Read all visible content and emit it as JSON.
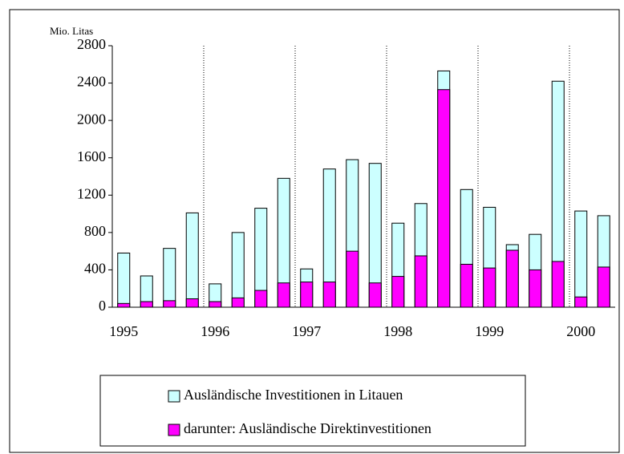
{
  "chart_data": {
    "type": "bar",
    "y_unit": "Mio. Litas",
    "categories": [
      "1995",
      null,
      null,
      null,
      "1996",
      null,
      null,
      null,
      "1997",
      null,
      null,
      null,
      "1998",
      null,
      null,
      null,
      "1999",
      null,
      null,
      null,
      "2000",
      null
    ],
    "series": [
      {
        "name": "Ausländische Investitionen in Litauen",
        "color": "#ccffff",
        "values": [
          580,
          335,
          630,
          1010,
          250,
          800,
          1060,
          1380,
          410,
          1480,
          1580,
          1540,
          900,
          1110,
          2530,
          1260,
          1070,
          670,
          780,
          2420,
          1030,
          980
        ]
      },
      {
        "name": "darunter: Ausländische Direktinvestitionen",
        "color": "#ff00ff",
        "values": [
          40,
          60,
          70,
          90,
          60,
          100,
          180,
          260,
          270,
          270,
          600,
          260,
          330,
          550,
          2330,
          460,
          420,
          610,
          400,
          490,
          110,
          430
        ]
      }
    ],
    "ylim": [
      0,
      2800
    ],
    "yticks": [
      0,
      400,
      800,
      1200,
      1600,
      2000,
      2400,
      2800
    ]
  }
}
